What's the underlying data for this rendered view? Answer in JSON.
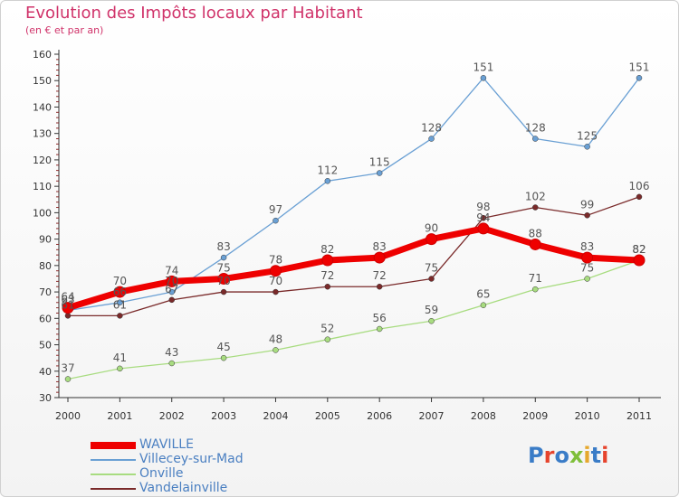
{
  "header": {
    "title": "Evolution des Impôts locaux par Habitant",
    "subtitle": "(en € et par an)"
  },
  "logo": {
    "letters": [
      "P",
      "r",
      "o",
      "x",
      "i",
      "t",
      "i"
    ],
    "colors": [
      "#3a7cc7",
      "#e6442d",
      "#3a7cc7",
      "#7fbf3a",
      "#e6a82d",
      "#3a7cc7",
      "#e6442d"
    ]
  },
  "chart_data": {
    "type": "line",
    "title": "Evolution des Impôts locaux par Habitant",
    "subtitle": "(en € et par an)",
    "x": [
      "2000",
      "2001",
      "2002",
      "2003",
      "2004",
      "2005",
      "2006",
      "2007",
      "2008",
      "2009",
      "2010",
      "2011"
    ],
    "ylim": [
      30,
      160
    ],
    "yticks": [
      30,
      40,
      50,
      60,
      70,
      80,
      90,
      100,
      110,
      120,
      130,
      140,
      150,
      160
    ],
    "grid": false,
    "legend_position": "bottom-left",
    "series": [
      {
        "name": "WAVILLE",
        "color": "#ee0000",
        "values": [
          64,
          70,
          74,
          75,
          78,
          82,
          83,
          90,
          94,
          88,
          83,
          82
        ]
      },
      {
        "name": "Villecey-sur-Mad",
        "color": "#6aa0d4",
        "values": [
          63,
          66,
          70,
          83,
          97,
          112,
          115,
          128,
          151,
          128,
          125,
          151
        ]
      },
      {
        "name": "Onville",
        "color": "#a8dc80",
        "values": [
          37,
          41,
          43,
          45,
          48,
          52,
          56,
          59,
          65,
          71,
          75,
          82
        ]
      },
      {
        "name": "Vandelainville",
        "color": "#7a2a2a",
        "values": [
          61,
          61,
          67,
          70,
          70,
          72,
          72,
          75,
          98,
          102,
          99,
          106
        ]
      }
    ]
  }
}
